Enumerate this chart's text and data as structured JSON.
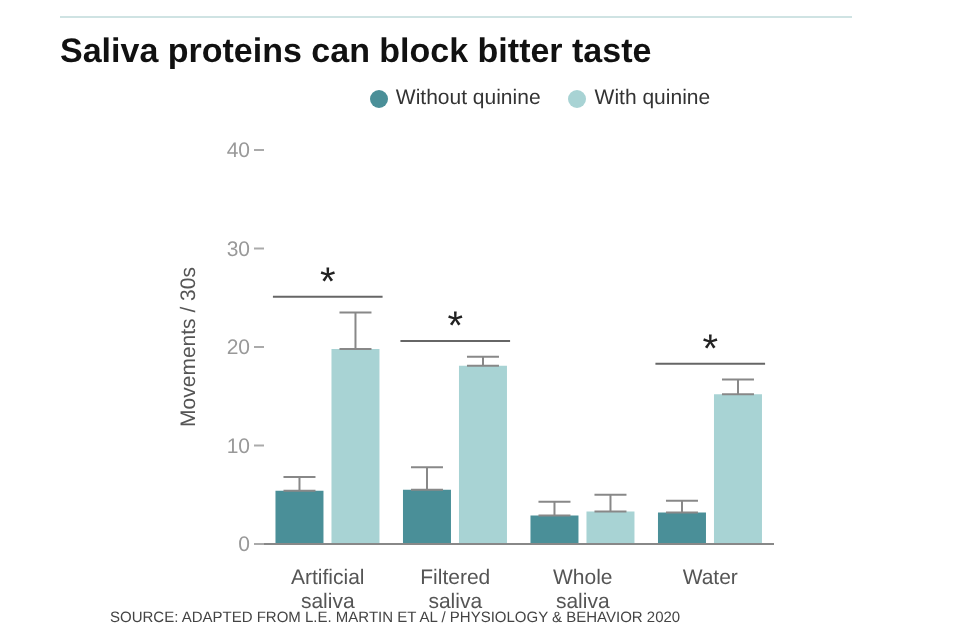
{
  "chart_data": {
    "type": "bar",
    "title": "Saliva proteins can block bitter taste",
    "ylabel": "Movements / 30s",
    "categories": [
      "Artificial saliva",
      "Filtered saliva",
      "Whole saliva",
      "Water"
    ],
    "series": [
      {
        "name": "Without quinine",
        "color": "#4a8f98",
        "values": [
          5.4,
          5.5,
          2.9,
          3.2
        ],
        "errors": [
          1.4,
          2.3,
          1.4,
          1.2
        ]
      },
      {
        "name": "With quinine",
        "color": "#a8d3d4",
        "values": [
          19.8,
          18.1,
          3.3,
          15.2
        ],
        "errors": [
          3.7,
          0.9,
          1.7,
          1.5
        ]
      }
    ],
    "ylim": [
      0,
      40
    ],
    "yticks": [
      0,
      10,
      20,
      30,
      40
    ],
    "grid": false,
    "legend": "top",
    "annotations": [
      "*",
      "*",
      "*",
      "SOURCE: ADAPTED FROM L.E. MARTIN ET AL / PHYSIOLOGY & BEHAVIOR 2020"
    ]
  }
}
